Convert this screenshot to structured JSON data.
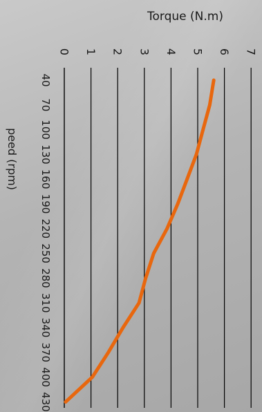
{
  "chart_data": {
    "type": "line",
    "title": "",
    "xlabel": "peed (rpm)",
    "ylabel": "Torque (N.m)",
    "x": [
      40,
      70,
      100,
      130,
      160,
      190,
      220,
      250,
      280,
      310,
      340,
      370,
      400,
      430
    ],
    "x_tick_labels": [
      "40",
      "70",
      "100",
      "130",
      "160",
      "190",
      "220",
      "250",
      "280",
      "310",
      "340",
      "370",
      "400",
      "430"
    ],
    "y_ticks": [
      "0",
      "1",
      "2",
      "3",
      "4",
      "5",
      "6",
      "7"
    ],
    "ylim": [
      0,
      7
    ],
    "grid": true,
    "series": [
      {
        "values": [
          5.6,
          5.45,
          5.2,
          4.95,
          4.6,
          4.25,
          3.85,
          3.35,
          3.05,
          2.8,
          2.2,
          1.65,
          1.05,
          0.05
        ],
        "color": "#e8670e"
      }
    ]
  },
  "colors": {
    "gridline": "#000000",
    "text": "#1a1a1a",
    "series": "#e8670e"
  }
}
